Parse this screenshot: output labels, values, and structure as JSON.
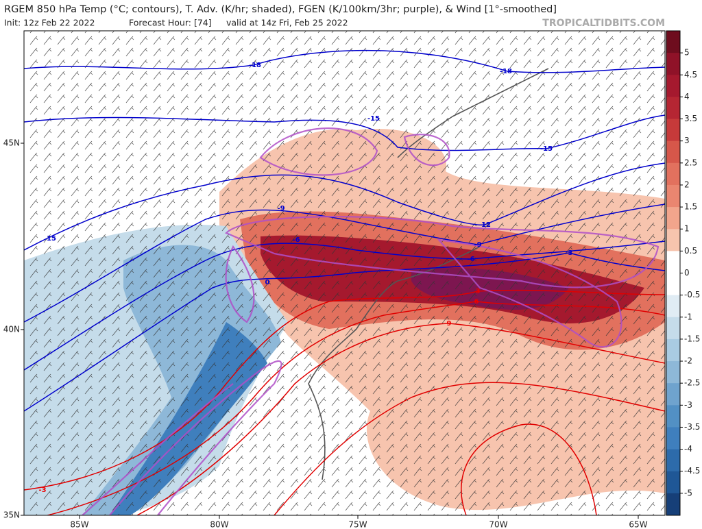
{
  "header": {
    "title": "RGEM 850 hPa Temp (°C; contours), T. Adv. (K/hr; shaded), FGEN (K/100km/3hr; purple), & Wind [1°-smoothed]",
    "init": "Init: 12z Feb 22 2022",
    "forecast_hour": "Forecast Hour: [74]",
    "valid": "valid at 14z Fri, Feb 25 2022",
    "watermark": "TROPICALTIDBITS.COM"
  },
  "map": {
    "lon_labels": [
      "85W",
      "80W",
      "75W",
      "70W",
      "65W"
    ],
    "lat_labels": [
      "45N",
      "40N",
      "35N"
    ],
    "contour_labels": [
      "-18",
      "-18",
      "-15",
      "-15",
      "-12",
      "-9",
      "-6",
      "-3",
      "0",
      "-9",
      "-6",
      "15",
      "-3",
      "9",
      "6",
      "3"
    ]
  },
  "colorbar": {
    "ticks": [
      5,
      4.5,
      4,
      3.5,
      3,
      2.5,
      2,
      1.5,
      1,
      0.5,
      0,
      -0.5,
      -1,
      -1.5,
      -2,
      -2.5,
      -3,
      -3.5,
      -4,
      -4.5,
      -5
    ]
  }
}
